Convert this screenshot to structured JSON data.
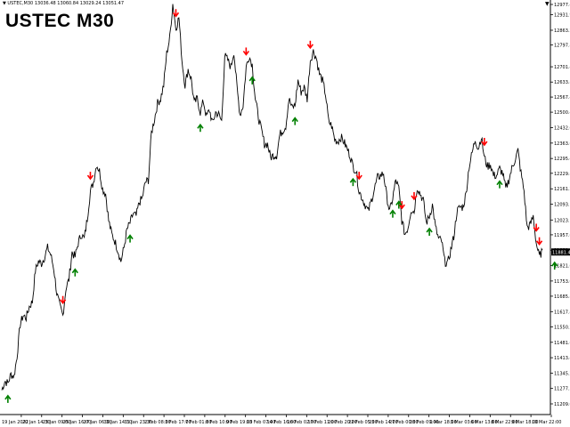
{
  "window": {
    "info_line": "▼ USTEC,M30  13036.48 13060.84 13029.24 13051.47",
    "title": "USTEC M30",
    "shift_marker": "▼"
  },
  "price_axis": {
    "ticks": [
      "12977.40",
      "12931.90",
      "12863.25",
      "12797.80",
      "12701.40",
      "12633.80",
      "12567.40",
      "12500.40",
      "12432.00",
      "12363.60",
      "12295.40",
      "12229.80",
      "12161.20",
      "12093.10",
      "12023.10",
      "11957.60",
      "11889.40",
      "11821.60",
      "11753.00",
      "11685.80",
      "11617.40",
      "11550.20",
      "11481.60",
      "11413.40",
      "11345.20",
      "11277.30",
      "11209.00"
    ],
    "current_price": "11881.47"
  },
  "time_axis": {
    "ticks": [
      "19 Jan 2022",
      "20 Jan 14:30",
      "23 Jan 09:00",
      "25 Jan 16:00",
      "27 Jan 06:30",
      "30 Jan 14:30",
      "31 Jan 23:30",
      "2 Feb 08:00",
      "3 Feb 17:00",
      "7 Feb 01:00",
      "8 Feb 10:00",
      "9 Feb 19:00",
      "13 Feb 07:00",
      "14 Feb 16:00",
      "16 Feb 02:00",
      "17 Feb 11:00",
      "20 Feb 20:00",
      "22 Feb 05:00",
      "23 Feb 14:00",
      "27 Feb 00:00",
      "28 Feb 09:00",
      "1 Mar 18:00",
      "3 Mar 03:00",
      "6 Mar 13:00",
      "8 Mar 22:00",
      "9 Mar 18:00",
      "10 Mar 22:00"
    ]
  },
  "colors": {
    "up_arrow": "#008000",
    "down_arrow": "#ff0000",
    "line": "#000000",
    "background": "#ffffff"
  },
  "chart_data": {
    "type": "line",
    "series": [
      {
        "values": [
          11270,
          11310,
          11300,
          11340,
          11330,
          11420,
          11560,
          11600,
          11590,
          11640,
          11660,
          11800,
          11840,
          11830,
          11860,
          11900,
          11870,
          11810,
          11700,
          11640,
          11600,
          11720,
          11760,
          11880,
          11860,
          11920,
          11960,
          11940,
          12030,
          12150,
          12190,
          12270,
          12240,
          12160,
          12140,
          12020,
          11960,
          11930,
          11890,
          11840,
          11900,
          11980,
          12010,
          12050,
          12040,
          12100,
          12120,
          12190,
          12200,
          12410,
          12470,
          12540,
          12560,
          12620,
          12760,
          12830,
          12980,
          12870,
          12920,
          12730,
          12620,
          12690,
          12650,
          12540,
          12560,
          12500,
          12550,
          12480,
          12510,
          12450,
          12500,
          12490,
          12460,
          12750,
          12730,
          12700,
          12770,
          12610,
          12490,
          12530,
          12700,
          12750,
          12710,
          12560,
          12480,
          12420,
          12360,
          12360,
          12300,
          12310,
          12310,
          12400,
          12420,
          12440,
          12560,
          12520,
          12530,
          12640,
          12590,
          12610,
          12560,
          12730,
          12770,
          12740,
          12670,
          12640,
          12580,
          12460,
          12440,
          12380,
          12370,
          12390,
          12370,
          12340,
          12310,
          12260,
          12240,
          12150,
          12120,
          12090,
          12060,
          12110,
          12160,
          12210,
          12220,
          12230,
          12130,
          12060,
          12120,
          12200,
          12160,
          12020,
          11960,
          11990,
          12070,
          12060,
          12170,
          12140,
          12110,
          12010,
          12040,
          12090,
          11990,
          11940,
          11930,
          11840,
          11830,
          11890,
          11950,
          12060,
          12080,
          12080,
          12140,
          12260,
          12320,
          12380,
          12340,
          12390,
          12300,
          12260,
          12270,
          12220,
          12220,
          12250,
          12230,
          12160,
          12200,
          12250,
          12290,
          12330,
          12230,
          12150,
          11990,
          12000,
          12040,
          11920,
          11860,
          11890
        ],
        "note": ""
      }
    ],
    "down_arrows": 13,
    "up_arrows": 13
  }
}
